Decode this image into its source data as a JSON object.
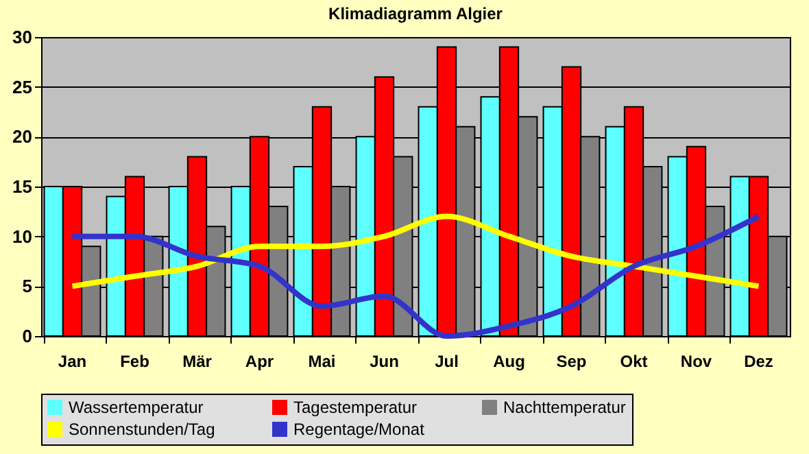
{
  "chart_data": {
    "type": "bar",
    "title": "Klimadiagramm Algier",
    "categories": [
      "Jan",
      "Feb",
      "Mär",
      "Apr",
      "Mai",
      "Jun",
      "Jul",
      "Aug",
      "Sep",
      "Okt",
      "Nov",
      "Dez"
    ],
    "series": [
      {
        "name": "Wassertemperatur",
        "color": "#5effff",
        "values": [
          15,
          14,
          15,
          15,
          17,
          20,
          23,
          24,
          23,
          21,
          18,
          16
        ]
      },
      {
        "name": "Tagestemperatur",
        "color": "#ff0000",
        "values": [
          15,
          16,
          18,
          20,
          23,
          26,
          29,
          29,
          27,
          23,
          19,
          16
        ]
      },
      {
        "name": "Nachttemperatur",
        "color": "#808080",
        "values": [
          9,
          10,
          11,
          13,
          15,
          18,
          21,
          22,
          20,
          17,
          13,
          10
        ]
      },
      {
        "name": "Sonnenstunden/Tag",
        "type": "line",
        "color": "#ffff00",
        "values": [
          5,
          6,
          7,
          9,
          9,
          10,
          12,
          10,
          8,
          7,
          6,
          5
        ]
      },
      {
        "name": "Regentage/Monat",
        "type": "line",
        "color": "#3333cc",
        "values": [
          10,
          10,
          8,
          7,
          3,
          4,
          0,
          1,
          3,
          7,
          9,
          12
        ]
      }
    ],
    "ylim": [
      0,
      30
    ],
    "yticks": [
      0,
      5,
      10,
      15,
      20,
      25,
      30
    ],
    "grid": "y",
    "legend": "bottom"
  }
}
